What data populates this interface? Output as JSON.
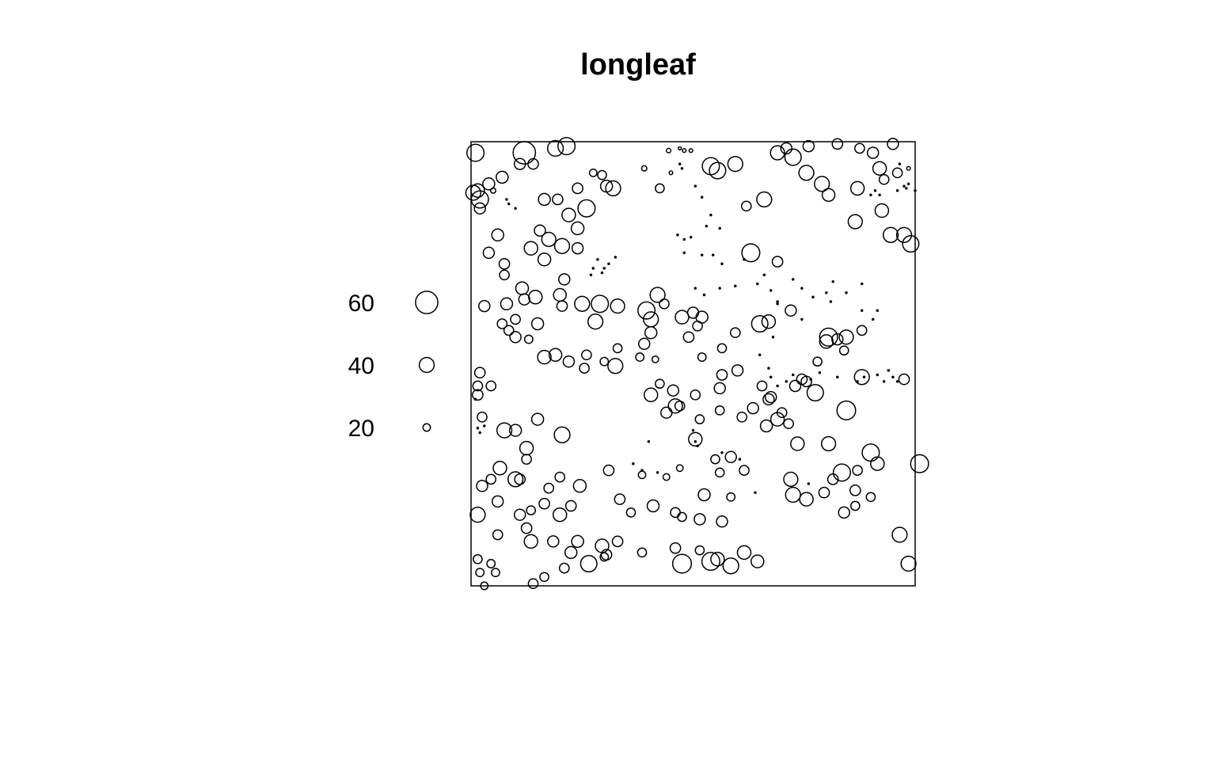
{
  "chart_data": {
    "type": "scatter",
    "title": "longleaf",
    "xlabel": "",
    "ylabel": "",
    "xlim": [
      0,
      200
    ],
    "ylim": [
      0,
      200
    ],
    "mark_attribute": "diameter (circle size)",
    "legend": {
      "placement": "left",
      "entries": [
        {
          "label": "60",
          "value": 60
        },
        {
          "label": "40",
          "value": 40
        },
        {
          "label": "20",
          "value": 20
        }
      ]
    },
    "points": [
      [
        2,
        195,
        46
      ],
      [
        24,
        195,
        60
      ],
      [
        38,
        197,
        42
      ],
      [
        43,
        198,
        46
      ],
      [
        14,
        184,
        32
      ],
      [
        22,
        190,
        30
      ],
      [
        28,
        190,
        28
      ],
      [
        89,
        196,
        12
      ],
      [
        94,
        197,
        8
      ],
      [
        96,
        196,
        10
      ],
      [
        99,
        196,
        10
      ],
      [
        4,
        174,
        46
      ],
      [
        8,
        181,
        32
      ],
      [
        1,
        177,
        40
      ],
      [
        33,
        174,
        32
      ],
      [
        44,
        167,
        36
      ],
      [
        48,
        161,
        34
      ],
      [
        59,
        185,
        24
      ],
      [
        55,
        186,
        20
      ],
      [
        61,
        180,
        32
      ],
      [
        64,
        179,
        40
      ],
      [
        48,
        179,
        28
      ],
      [
        39,
        174,
        28
      ],
      [
        52,
        170,
        46
      ],
      [
        78,
        188,
        14
      ],
      [
        85,
        179,
        24
      ],
      [
        90,
        186,
        10
      ],
      [
        108,
        189,
        46
      ],
      [
        111,
        187,
        44
      ],
      [
        119,
        190,
        40
      ],
      [
        138,
        195,
        38
      ],
      [
        142,
        197,
        30
      ],
      [
        145,
        193,
        44
      ],
      [
        152,
        198,
        30
      ],
      [
        165,
        199,
        28
      ],
      [
        175,
        197,
        26
      ],
      [
        181,
        195,
        30
      ],
      [
        190,
        199,
        30
      ],
      [
        151,
        186,
        40
      ],
      [
        158,
        181,
        40
      ],
      [
        161,
        176,
        34
      ],
      [
        174,
        179,
        36
      ],
      [
        192,
        186,
        26
      ],
      [
        197,
        188,
        10
      ],
      [
        184,
        188,
        36
      ],
      [
        186,
        183,
        26
      ],
      [
        185,
        169,
        36
      ],
      [
        195,
        158,
        40
      ],
      [
        198,
        154,
        44
      ],
      [
        189,
        158,
        40
      ],
      [
        173,
        164,
        38
      ],
      [
        132,
        174,
        40
      ],
      [
        124,
        171,
        26
      ],
      [
        126,
        150,
        48
      ],
      [
        138,
        146,
        28
      ],
      [
        10,
        178,
        14
      ],
      [
        3,
        178,
        36
      ],
      [
        4,
        170,
        30
      ],
      [
        12,
        158,
        32
      ],
      [
        15,
        145,
        28
      ],
      [
        8,
        150,
        30
      ],
      [
        15,
        140,
        26
      ],
      [
        27,
        152,
        36
      ],
      [
        35,
        156,
        38
      ],
      [
        41,
        153,
        40
      ],
      [
        48,
        152,
        30
      ],
      [
        31,
        160,
        30
      ],
      [
        33,
        147,
        34
      ],
      [
        23,
        134,
        34
      ],
      [
        16,
        127,
        32
      ],
      [
        40,
        131,
        34
      ],
      [
        42,
        138,
        30
      ],
      [
        29,
        130,
        36
      ],
      [
        24,
        129,
        30
      ],
      [
        6,
        126,
        30
      ],
      [
        14,
        118,
        26
      ],
      [
        30,
        118,
        32
      ],
      [
        17,
        115,
        26
      ],
      [
        41,
        126,
        28
      ],
      [
        50,
        127,
        40
      ],
      [
        58,
        127,
        46
      ],
      [
        66,
        126,
        38
      ],
      [
        56,
        119,
        40
      ],
      [
        20,
        120,
        26
      ],
      [
        20,
        112,
        30
      ],
      [
        26,
        111,
        22
      ],
      [
        33,
        103,
        36
      ],
      [
        38,
        104,
        34
      ],
      [
        44,
        101,
        30
      ],
      [
        52,
        104,
        26
      ],
      [
        60,
        101,
        22
      ],
      [
        51,
        98,
        26
      ],
      [
        66,
        107,
        24
      ],
      [
        65,
        99,
        40
      ],
      [
        79,
        124,
        46
      ],
      [
        81,
        120,
        40
      ],
      [
        84,
        131,
        40
      ],
      [
        87,
        127,
        26
      ],
      [
        81,
        114,
        32
      ],
      [
        76,
        103,
        22
      ],
      [
        83,
        102,
        18
      ],
      [
        85,
        91,
        24
      ],
      [
        91,
        88,
        30
      ],
      [
        92,
        81,
        38
      ],
      [
        81,
        86,
        36
      ],
      [
        88,
        78,
        30
      ],
      [
        94,
        81,
        26
      ],
      [
        101,
        86,
        26
      ],
      [
        104,
        103,
        22
      ],
      [
        113,
        107,
        24
      ],
      [
        119,
        114,
        26
      ],
      [
        113,
        95,
        28
      ],
      [
        120,
        97,
        30
      ],
      [
        112,
        89,
        30
      ],
      [
        98,
        112,
        28
      ],
      [
        104,
        121,
        32
      ],
      [
        100,
        123,
        30
      ],
      [
        102,
        117,
        26
      ],
      [
        95,
        121,
        36
      ],
      [
        78,
        109,
        30
      ],
      [
        130,
        118,
        44
      ],
      [
        134,
        119,
        36
      ],
      [
        144,
        124,
        30
      ],
      [
        161,
        112,
        48
      ],
      [
        169,
        112,
        38
      ],
      [
        134,
        84,
        30
      ],
      [
        133,
        72,
        32
      ],
      [
        138,
        75,
        36
      ],
      [
        146,
        90,
        30
      ],
      [
        149,
        93,
        28
      ],
      [
        155,
        87,
        44
      ],
      [
        169,
        79,
        50
      ],
      [
        176,
        94,
        40
      ],
      [
        143,
        73,
        26
      ],
      [
        147,
        64,
        36
      ],
      [
        144,
        48,
        38
      ],
      [
        161,
        64,
        38
      ],
      [
        167,
        51,
        46
      ],
      [
        180,
        60,
        46
      ],
      [
        174,
        52,
        26
      ],
      [
        183,
        55,
        36
      ],
      [
        202,
        55,
        48
      ],
      [
        193,
        23,
        40
      ],
      [
        197,
        10,
        40
      ],
      [
        195,
        93,
        28
      ],
      [
        4,
        96,
        28
      ],
      [
        3,
        86,
        28
      ],
      [
        5,
        76,
        26
      ],
      [
        9,
        90,
        26
      ],
      [
        3,
        90,
        26
      ],
      [
        15,
        70,
        40
      ],
      [
        20,
        70,
        32
      ],
      [
        30,
        75,
        32
      ],
      [
        41,
        68,
        42
      ],
      [
        25,
        62,
        36
      ],
      [
        13,
        53,
        36
      ],
      [
        20,
        48,
        40
      ],
      [
        25,
        57,
        26
      ],
      [
        22,
        48,
        28
      ],
      [
        35,
        44,
        26
      ],
      [
        40,
        49,
        26
      ],
      [
        9,
        48,
        26
      ],
      [
        5,
        45,
        30
      ],
      [
        3,
        32,
        40
      ],
      [
        12,
        38,
        30
      ],
      [
        22,
        32,
        30
      ],
      [
        27,
        34,
        24
      ],
      [
        33,
        37,
        28
      ],
      [
        40,
        32,
        36
      ],
      [
        45,
        36,
        28
      ],
      [
        49,
        45,
        34
      ],
      [
        37,
        20,
        30
      ],
      [
        48,
        20,
        32
      ],
      [
        59,
        18,
        36
      ],
      [
        66,
        20,
        28
      ],
      [
        67,
        39,
        28
      ],
      [
        72,
        33,
        24
      ],
      [
        62,
        52,
        28
      ],
      [
        77,
        50,
        20
      ],
      [
        88,
        49,
        18
      ],
      [
        94,
        53,
        18
      ],
      [
        82,
        36,
        32
      ],
      [
        92,
        33,
        26
      ],
      [
        103,
        30,
        30
      ],
      [
        113,
        29,
        30
      ],
      [
        92,
        17,
        28
      ],
      [
        108,
        11,
        48
      ],
      [
        103,
        16,
        24
      ],
      [
        95,
        10,
        50
      ],
      [
        117,
        9,
        42
      ],
      [
        111,
        12,
        36
      ],
      [
        123,
        15,
        36
      ],
      [
        129,
        11,
        34
      ],
      [
        12,
        23,
        26
      ],
      [
        25,
        26,
        28
      ],
      [
        27,
        20,
        36
      ],
      [
        45,
        15,
        32
      ],
      [
        42,
        8,
        26
      ],
      [
        53,
        10,
        44
      ],
      [
        61,
        14,
        28
      ],
      [
        77,
        15,
        24
      ],
      [
        4,
        6,
        22
      ],
      [
        11,
        6,
        22
      ],
      [
        6,
        0,
        20
      ],
      [
        9,
        10,
        22
      ],
      [
        3,
        12,
        24
      ],
      [
        28,
        1,
        26
      ],
      [
        33,
        4,
        24
      ],
      [
        60,
        13,
        22
      ],
      [
        103,
        75,
        24
      ],
      [
        112,
        79,
        24
      ],
      [
        122,
        76,
        26
      ],
      [
        127,
        80,
        30
      ],
      [
        131,
        90,
        26
      ],
      [
        135,
        85,
        30
      ],
      [
        140,
        78,
        26
      ],
      [
        151,
        92,
        28
      ],
      [
        156,
        101,
        24
      ],
      [
        160,
        110,
        36
      ],
      [
        165,
        111,
        30
      ],
      [
        176,
        115,
        26
      ],
      [
        168,
        106,
        24
      ],
      [
        117,
        58,
        30
      ],
      [
        123,
        52,
        26
      ],
      [
        101,
        66,
        36
      ],
      [
        110,
        57,
        24
      ],
      [
        112,
        51,
        24
      ],
      [
        105,
        41,
        32
      ],
      [
        95,
        31,
        24
      ],
      [
        117,
        40,
        22
      ],
      [
        145,
        41,
        40
      ],
      [
        151,
        39,
        36
      ],
      [
        159,
        42,
        28
      ],
      [
        163,
        48,
        28
      ],
      [
        168,
        33,
        30
      ],
      [
        173,
        43,
        28
      ],
      [
        180,
        40,
        24
      ],
      [
        173,
        36,
        24
      ]
    ],
    "saplings": [
      [
        16,
        174
      ],
      [
        17,
        172
      ],
      [
        20,
        170
      ],
      [
        57,
        147
      ],
      [
        54,
        140
      ],
      [
        59,
        141
      ],
      [
        62,
        145
      ],
      [
        65,
        148
      ],
      [
        60,
        143
      ],
      [
        55,
        143
      ],
      [
        94,
        190
      ],
      [
        95,
        188
      ],
      [
        101,
        180
      ],
      [
        104,
        175
      ],
      [
        108,
        167
      ],
      [
        112,
        161
      ],
      [
        106,
        162
      ],
      [
        99,
        157
      ],
      [
        96,
        156
      ],
      [
        93,
        158
      ],
      [
        96,
        150
      ],
      [
        104,
        149
      ],
      [
        109,
        149
      ],
      [
        123,
        147
      ],
      [
        113,
        145
      ],
      [
        101,
        134
      ],
      [
        105,
        131
      ],
      [
        112,
        134
      ],
      [
        119,
        135
      ],
      [
        129,
        136
      ],
      [
        132,
        140
      ],
      [
        135,
        133
      ],
      [
        138,
        127
      ],
      [
        145,
        138
      ],
      [
        149,
        134
      ],
      [
        154,
        130
      ],
      [
        160,
        132
      ],
      [
        162,
        128
      ],
      [
        163,
        137
      ],
      [
        169,
        132
      ],
      [
        176,
        136
      ],
      [
        181,
        120
      ],
      [
        183,
        124
      ],
      [
        176,
        124
      ],
      [
        149,
        120
      ],
      [
        138,
        128
      ],
      [
        136,
        112
      ],
      [
        130,
        104
      ],
      [
        134,
        98
      ],
      [
        135,
        94
      ],
      [
        145,
        95
      ],
      [
        153,
        93
      ],
      [
        157,
        96
      ],
      [
        165,
        94
      ],
      [
        174,
        92
      ],
      [
        177,
        94
      ],
      [
        186,
        92
      ],
      [
        183,
        95
      ],
      [
        188,
        97
      ],
      [
        190,
        94
      ],
      [
        192,
        92
      ],
      [
        193,
        190
      ],
      [
        196,
        179
      ],
      [
        192,
        178
      ],
      [
        195,
        180
      ],
      [
        197,
        181
      ],
      [
        200,
        178
      ],
      [
        184,
        176
      ],
      [
        182,
        178
      ],
      [
        180,
        176
      ],
      [
        3,
        71
      ],
      [
        4,
        69
      ],
      [
        2,
        84
      ],
      [
        6,
        72
      ],
      [
        100,
        70
      ],
      [
        101,
        65
      ],
      [
        102,
        63
      ],
      [
        80,
        65
      ],
      [
        73,
        55
      ],
      [
        77,
        52
      ],
      [
        84,
        51
      ],
      [
        121,
        57
      ],
      [
        113,
        60
      ],
      [
        128,
        42
      ],
      [
        152,
        46
      ],
      [
        138,
        90
      ],
      [
        142,
        92
      ]
    ]
  }
}
